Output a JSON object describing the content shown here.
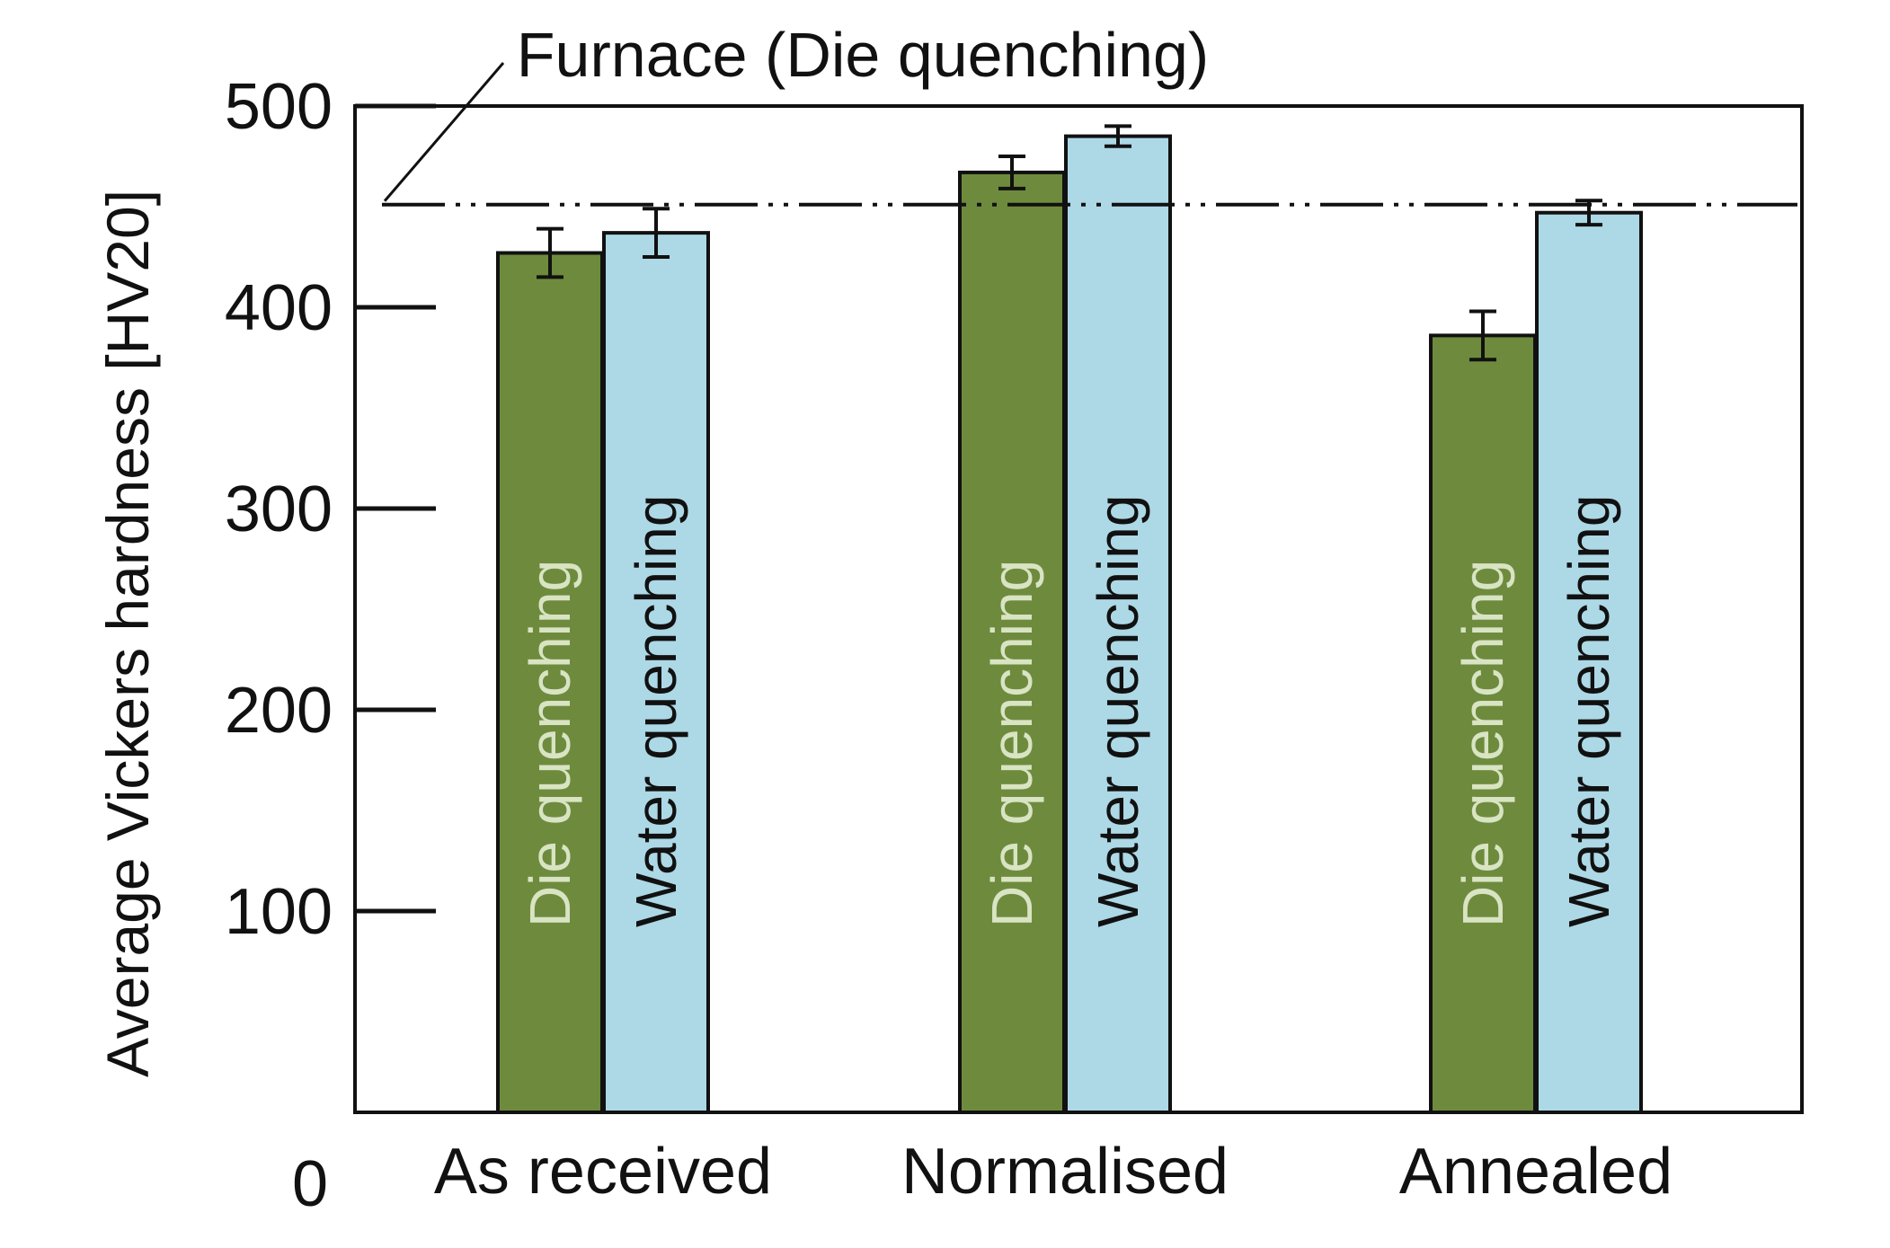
{
  "chart_data": {
    "type": "bar",
    "title": "",
    "xlabel": "",
    "ylabel": "Average Vickers hardness [HV20]",
    "ylim": [
      0,
      500
    ],
    "yticks": [
      "0",
      "100",
      "200",
      "300",
      "400",
      "500"
    ],
    "categories": [
      "As received",
      "Normalised",
      "Annealed"
    ],
    "series": [
      {
        "name": "Die quenching",
        "color": "#6e8b3d",
        "label_color": "#d8e4c3",
        "values": [
          427,
          467,
          386
        ],
        "errors": [
          12,
          8,
          12
        ]
      },
      {
        "name": "Water quenching",
        "color": "#add8e6",
        "label_color": "#111111",
        "values": [
          437,
          485,
          447
        ],
        "errors": [
          12,
          5,
          6
        ]
      }
    ],
    "reference_line": {
      "label": "Furnace (Die quenching)",
      "value": 451,
      "style": "dash-dot-dot"
    },
    "grid": false,
    "legend": "none (bar labels inside bars)"
  }
}
